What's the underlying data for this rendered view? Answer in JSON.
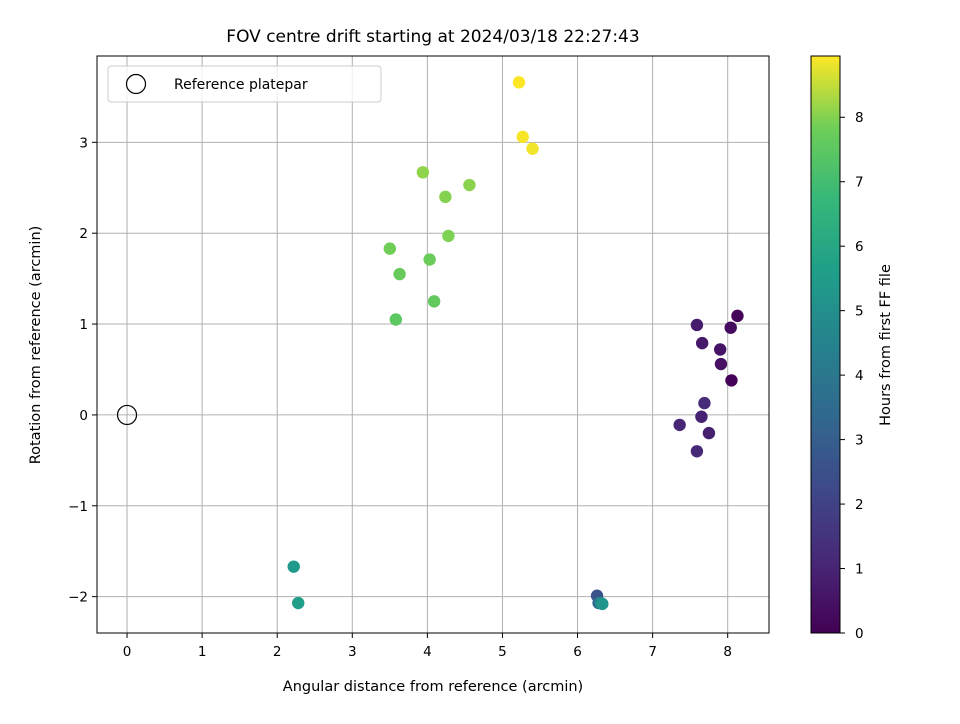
{
  "chart_data": {
    "type": "scatter",
    "title": "FOV centre drift starting at 2024/03/18 22:27:43",
    "xlabel": "Angular distance from reference (arcmin)",
    "ylabel": "Rotation from reference (arcmin)",
    "xlim": [
      -0.4,
      8.55
    ],
    "ylim": [
      -2.4,
      3.95
    ],
    "xticks": [
      0,
      1,
      2,
      3,
      4,
      5,
      6,
      7,
      8
    ],
    "yticks": [
      -2,
      -1,
      0,
      1,
      2,
      3
    ],
    "grid": true,
    "legend": {
      "position": "top-left",
      "entries": [
        "Reference platepar"
      ]
    },
    "reference_point": {
      "x": 0,
      "y": 0,
      "label": "Reference platepar"
    },
    "colorbar": {
      "label": "Hours from first FF file",
      "range": [
        0,
        8.95
      ],
      "ticks": [
        0,
        1,
        2,
        3,
        4,
        5,
        6,
        7,
        8
      ],
      "colormap": "viridis"
    },
    "points": [
      {
        "x": 8.05,
        "y": 0.38,
        "hours": 0.05
      },
      {
        "x": 8.13,
        "y": 1.09,
        "hours": 0.15
      },
      {
        "x": 8.04,
        "y": 0.96,
        "hours": 0.3
      },
      {
        "x": 7.91,
        "y": 0.56,
        "hours": 0.45
      },
      {
        "x": 7.9,
        "y": 0.72,
        "hours": 0.55
      },
      {
        "x": 7.66,
        "y": 0.79,
        "hours": 0.65
      },
      {
        "x": 7.59,
        "y": 0.99,
        "hours": 0.75
      },
      {
        "x": 7.75,
        "y": -0.2,
        "hours": 0.85
      },
      {
        "x": 7.65,
        "y": -0.02,
        "hours": 0.95
      },
      {
        "x": 7.36,
        "y": -0.11,
        "hours": 1.05
      },
      {
        "x": 7.59,
        "y": -0.4,
        "hours": 1.15
      },
      {
        "x": 7.69,
        "y": 0.13,
        "hours": 1.25
      },
      {
        "x": 6.26,
        "y": -1.99,
        "hours": 2.6
      },
      {
        "x": 6.28,
        "y": -2.07,
        "hours": 3.4
      },
      {
        "x": 6.31,
        "y": -2.07,
        "hours": 4.7
      },
      {
        "x": 6.33,
        "y": -2.08,
        "hours": 5.2
      },
      {
        "x": 2.22,
        "y": -1.67,
        "hours": 5.45
      },
      {
        "x": 2.28,
        "y": -2.07,
        "hours": 5.6
      },
      {
        "x": 3.58,
        "y": 1.05,
        "hours": 7.5
      },
      {
        "x": 4.09,
        "y": 1.25,
        "hours": 7.6
      },
      {
        "x": 3.63,
        "y": 1.55,
        "hours": 7.7
      },
      {
        "x": 4.03,
        "y": 1.71,
        "hours": 7.75
      },
      {
        "x": 3.5,
        "y": 1.83,
        "hours": 7.85
      },
      {
        "x": 4.28,
        "y": 1.97,
        "hours": 7.95
      },
      {
        "x": 4.24,
        "y": 2.4,
        "hours": 8.0
      },
      {
        "x": 4.56,
        "y": 2.53,
        "hours": 8.05
      },
      {
        "x": 3.94,
        "y": 2.67,
        "hours": 8.1
      },
      {
        "x": 5.4,
        "y": 2.93,
        "hours": 8.85
      },
      {
        "x": 5.27,
        "y": 3.06,
        "hours": 8.9
      },
      {
        "x": 5.22,
        "y": 3.66,
        "hours": 8.95
      }
    ]
  }
}
